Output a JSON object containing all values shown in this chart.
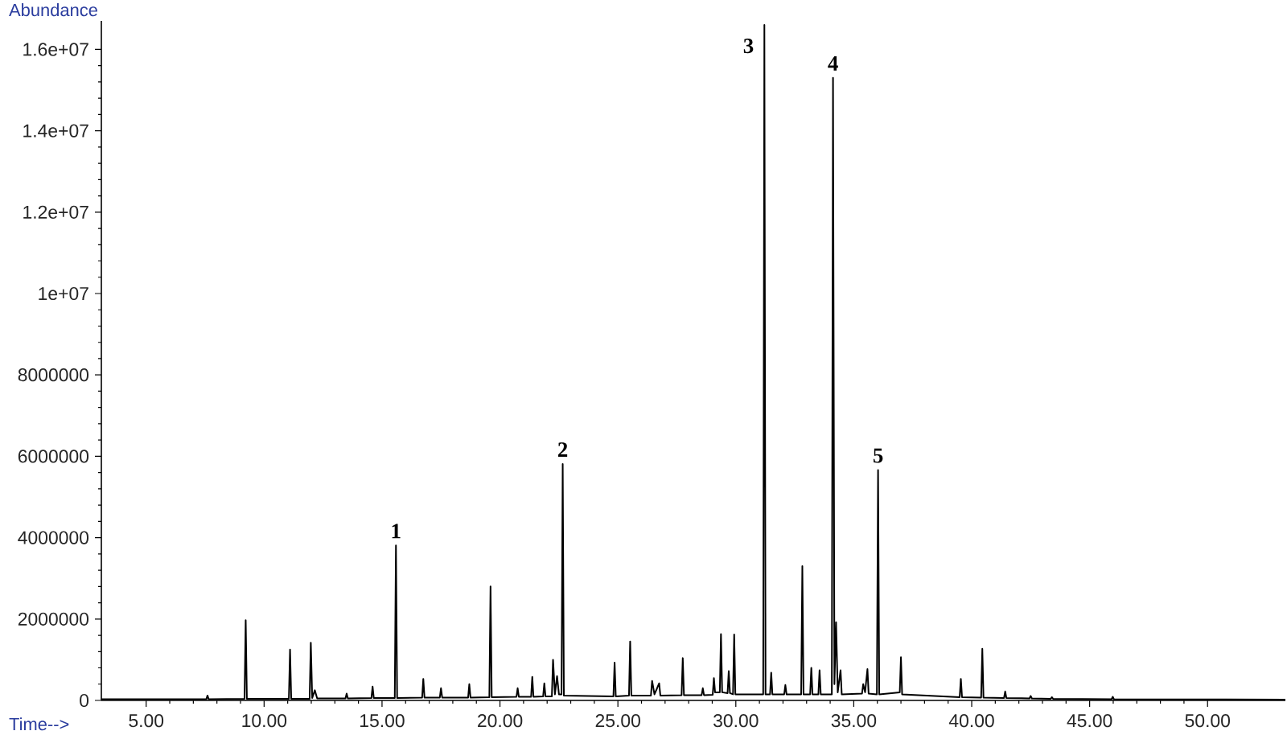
{
  "chart_data": {
    "type": "line",
    "xlabel": "Time-->",
    "ylabel": "Abundance",
    "color": "#000000",
    "xlim": [
      3.1,
      53.3
    ],
    "ylim": [
      0,
      16700000
    ],
    "xticks": [
      {
        "value": 5,
        "label": "5.00"
      },
      {
        "value": 10,
        "label": "10.00"
      },
      {
        "value": 15,
        "label": "15.00"
      },
      {
        "value": 20,
        "label": "20.00"
      },
      {
        "value": 25,
        "label": "25.00"
      },
      {
        "value": 30,
        "label": "30.00"
      },
      {
        "value": 35,
        "label": "35.00"
      },
      {
        "value": 40,
        "label": "40.00"
      },
      {
        "value": 45,
        "label": "45.00"
      },
      {
        "value": 50,
        "label": "50.00"
      }
    ],
    "yticks": [
      0,
      2000000,
      4000000,
      6000000,
      8000000,
      {
        "value": 10000000,
        "label": "1e+07"
      },
      {
        "value": 12000000,
        "label": "1.2e+07"
      },
      {
        "value": 14000000,
        "label": "1.4e+07"
      },
      {
        "value": 16000000,
        "label": "1.6e+07"
      }
    ],
    "x": [
      3.1,
      7.55,
      7.6,
      7.65,
      9.17,
      9.22,
      9.27,
      11.05,
      11.1,
      11.15,
      11.93,
      11.98,
      12.04,
      12.15,
      12.25,
      13.45,
      13.5,
      13.55,
      14.55,
      14.6,
      14.65,
      15.54,
      15.59,
      15.64,
      16.7,
      16.75,
      16.8,
      17.45,
      17.5,
      17.55,
      18.65,
      18.7,
      18.75,
      19.55,
      19.6,
      19.65,
      20.7,
      20.75,
      20.8,
      21.32,
      21.37,
      21.42,
      21.83,
      21.88,
      21.93,
      22.2,
      22.25,
      22.33,
      22.42,
      22.5,
      22.61,
      22.66,
      22.71,
      24.81,
      24.86,
      24.91,
      25.47,
      25.52,
      25.57,
      26.4,
      26.45,
      26.55,
      26.75,
      26.8,
      27.7,
      27.75,
      27.8,
      28.55,
      28.6,
      28.65,
      29.02,
      29.07,
      29.12,
      29.32,
      29.37,
      29.42,
      29.65,
      29.7,
      29.75,
      29.88,
      29.93,
      29.98,
      31.16,
      31.21,
      31.26,
      31.45,
      31.5,
      31.55,
      32.05,
      32.1,
      32.15,
      32.77,
      32.82,
      32.87,
      33.15,
      33.2,
      33.25,
      33.5,
      33.55,
      33.6,
      34.07,
      34.12,
      34.18,
      34.25,
      34.32,
      34.44,
      34.49,
      35.35,
      35.4,
      35.48,
      35.58,
      35.63,
      35.98,
      36.03,
      36.08,
      36.95,
      37.0,
      37.05,
      39.49,
      39.54,
      39.59,
      40.4,
      40.45,
      40.5,
      41.37,
      41.42,
      41.47,
      42.45,
      42.5,
      42.55,
      43.35,
      43.4,
      43.45,
      45.93,
      45.98,
      46.03,
      53.3
    ],
    "values": [
      30000,
      30000,
      120000,
      30000,
      40000,
      1970000,
      40000,
      40000,
      1250000,
      40000,
      40000,
      1420000,
      60000,
      250000,
      50000,
      50000,
      170000,
      50000,
      60000,
      340000,
      60000,
      60000,
      3810000,
      60000,
      70000,
      530000,
      70000,
      70000,
      300000,
      70000,
      70000,
      400000,
      70000,
      80000,
      2800000,
      80000,
      90000,
      300000,
      90000,
      90000,
      580000,
      90000,
      100000,
      420000,
      100000,
      100000,
      1000000,
      150000,
      600000,
      150000,
      150000,
      5810000,
      120000,
      100000,
      930000,
      100000,
      120000,
      1450000,
      120000,
      120000,
      480000,
      150000,
      420000,
      120000,
      130000,
      1040000,
      130000,
      130000,
      300000,
      130000,
      140000,
      550000,
      200000,
      200000,
      1630000,
      200000,
      180000,
      720000,
      180000,
      150000,
      1620000,
      150000,
      150000,
      16600000,
      150000,
      150000,
      680000,
      150000,
      150000,
      380000,
      150000,
      150000,
      3300000,
      150000,
      150000,
      800000,
      150000,
      150000,
      740000,
      150000,
      150000,
      15300000,
      400000,
      1920000,
      200000,
      740000,
      150000,
      170000,
      400000,
      200000,
      770000,
      170000,
      150000,
      5660000,
      150000,
      200000,
      1060000,
      150000,
      80000,
      530000,
      80000,
      70000,
      1270000,
      70000,
      60000,
      220000,
      60000,
      50000,
      110000,
      50000,
      40000,
      80000,
      40000,
      30000,
      90000,
      30000,
      20000
    ],
    "annotations": [
      {
        "text": "1",
        "x": 15.59,
        "y": 3810000
      },
      {
        "text": "2",
        "x": 22.66,
        "y": 5810000
      },
      {
        "text": "3",
        "x": 31.21,
        "y": 16600000
      },
      {
        "text": "4",
        "x": 34.12,
        "y": 15300000
      },
      {
        "text": "5",
        "x": 36.03,
        "y": 5660000
      }
    ]
  }
}
